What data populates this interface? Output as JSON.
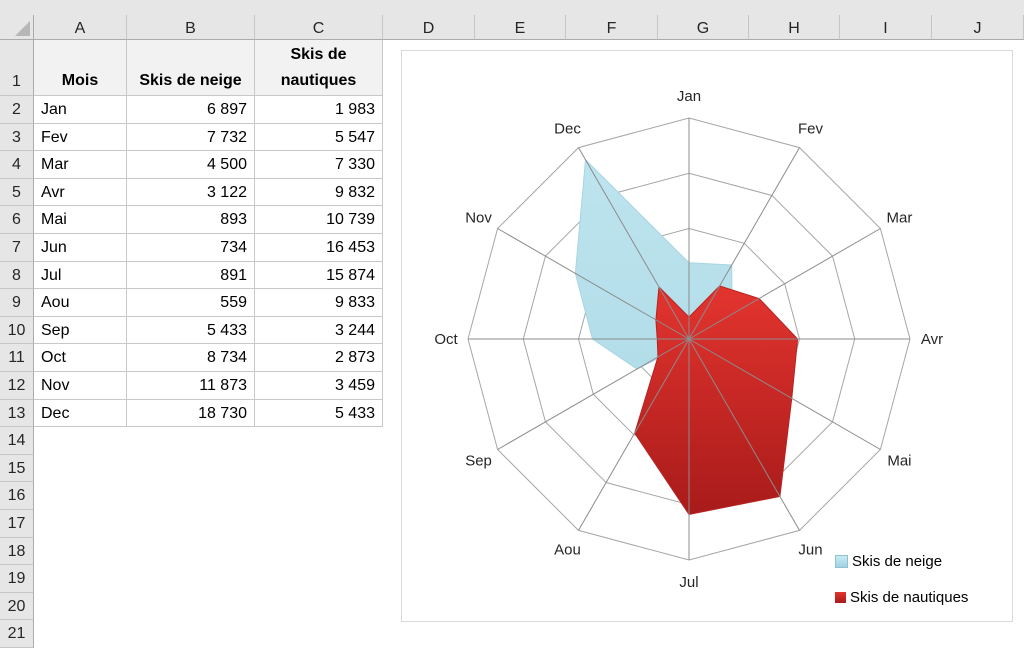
{
  "spreadsheet": {
    "columns": [
      "A",
      "B",
      "C",
      "D",
      "E",
      "F",
      "G",
      "H",
      "I",
      "J"
    ],
    "rows": [
      "1",
      "2",
      "3",
      "4",
      "5",
      "6",
      "7",
      "8",
      "9",
      "10",
      "11",
      "12",
      "13",
      "14",
      "15",
      "16",
      "17",
      "18",
      "19",
      "20",
      "21"
    ],
    "headers": {
      "mois": "Mois",
      "neige": "Skis de neige",
      "nautiques_line1": "Skis de",
      "nautiques_line2": "nautiques"
    },
    "data": [
      {
        "mois": "Jan",
        "neige": "6 897",
        "nautiques": "1 983"
      },
      {
        "mois": "Fev",
        "neige": "7 732",
        "nautiques": "5 547"
      },
      {
        "mois": "Mar",
        "neige": "4 500",
        "nautiques": "7 330"
      },
      {
        "mois": "Avr",
        "neige": "3 122",
        "nautiques": "9 832"
      },
      {
        "mois": "Mai",
        "neige": "893",
        "nautiques": "10 739"
      },
      {
        "mois": "Jun",
        "neige": "734",
        "nautiques": "16 453"
      },
      {
        "mois": "Jul",
        "neige": "891",
        "nautiques": "15 874"
      },
      {
        "mois": "Aou",
        "neige": "559",
        "nautiques": "9 833"
      },
      {
        "mois": "Sep",
        "neige": "5 433",
        "nautiques": "3 244"
      },
      {
        "mois": "Oct",
        "neige": "8 734",
        "nautiques": "2 873"
      },
      {
        "mois": "Nov",
        "neige": "11 873",
        "nautiques": "3 459"
      },
      {
        "mois": "Dec",
        "neige": "18 730",
        "nautiques": "5 433"
      }
    ]
  },
  "chart_data": {
    "type": "radar",
    "title": "",
    "categories": [
      "Jan",
      "Fev",
      "Mar",
      "Avr",
      "Mai",
      "Jun",
      "Jul",
      "Aou",
      "Sep",
      "Oct",
      "Nov",
      "Dec"
    ],
    "series": [
      {
        "name": "Skis de neige",
        "color": "#b7e1ec",
        "values": [
          6897,
          7732,
          4500,
          3122,
          893,
          734,
          891,
          559,
          5433,
          8734,
          11873,
          18730
        ]
      },
      {
        "name": "Skis de nautiques",
        "color": "#d42a27",
        "values": [
          1983,
          5547,
          7330,
          9832,
          10739,
          16453,
          15874,
          9833,
          3244,
          2873,
          3459,
          5433
        ]
      }
    ],
    "rmax": 20000,
    "rings": 4,
    "grid": true,
    "legend_position": "bottom-right"
  },
  "legend": {
    "items": [
      "Skis de neige",
      "Skis de nautiques"
    ]
  }
}
